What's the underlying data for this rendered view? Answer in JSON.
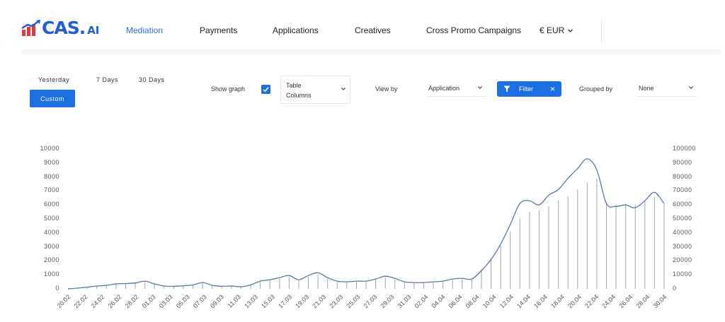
{
  "brand": {
    "name": "CAS.",
    "suffix": "AI",
    "colors": {
      "blue": "#1f5fd0",
      "red": "#e53935"
    }
  },
  "nav": {
    "items": [
      {
        "label": "Mediation",
        "active": true
      },
      {
        "label": "Payments",
        "active": false
      },
      {
        "label": "Applications",
        "active": false
      },
      {
        "label": "Creatives",
        "active": false
      },
      {
        "label": "Cross Promo Campaigns",
        "active": false
      }
    ],
    "currency": "€ EUR"
  },
  "controls": {
    "ranges": [
      "Yesterday",
      "7 Days",
      "30 Days"
    ],
    "custom_label": "Custom",
    "show_graph_label": "Show graph",
    "show_graph_checked": true,
    "metric_select": {
      "line1": "Table",
      "line2": "Columns"
    },
    "view_by_label": "View by",
    "view_by_value": "Application",
    "filter_label": "Filter",
    "grouped_by_label": "Grouped by",
    "grouped_by_value": "None",
    "accent": "#1b6fe0"
  },
  "chart_data": {
    "type": "line",
    "title": "",
    "xlabel": "",
    "ylabel": "",
    "left_axis": {
      "ticks": [
        "0",
        "1000",
        "2000",
        "3000",
        "4000",
        "5000",
        "6000",
        "7000",
        "8000",
        "9000",
        "10000"
      ],
      "ylim": [
        0,
        10000
      ]
    },
    "right_axis": {
      "ticks": [
        "0",
        "10000",
        "20000",
        "30000",
        "40000",
        "50000",
        "60000",
        "70000",
        "80000",
        "90000",
        "100000"
      ],
      "ylim": [
        0,
        100000
      ]
    },
    "x_tick_labels": [
      "20.02",
      "22.02",
      "24.02",
      "26.02",
      "28.02",
      "01.03",
      "03.03",
      "05.03",
      "07.03",
      "09.03",
      "11.03",
      "13.03",
      "15.03",
      "17.03",
      "19.03",
      "21.03",
      "23.03",
      "25.03",
      "27.03",
      "29.03",
      "31.03",
      "02.04",
      "04.04",
      "06.04",
      "08.04",
      "10.04",
      "12.04",
      "14.04",
      "16.04",
      "18.04",
      "20.04",
      "22.04",
      "24.04",
      "26.04",
      "28.04",
      "30.04"
    ],
    "series": [
      {
        "axis": "left",
        "style": "smooth-line",
        "color": "#5b77a8",
        "values": [
          0,
          50,
          120,
          200,
          250,
          350,
          380,
          420,
          550,
          350,
          200,
          180,
          220,
          280,
          450,
          250,
          180,
          200,
          150,
          280,
          550,
          650,
          800,
          950,
          650,
          950,
          1150,
          800,
          550,
          500,
          550,
          550,
          700,
          900,
          750,
          500,
          450,
          450,
          500,
          550,
          700,
          750,
          700,
          1300,
          2100,
          3200,
          4600,
          6100,
          6300,
          6000,
          6700,
          7100,
          7900,
          8600,
          9300,
          8500,
          6100,
          5900,
          6000,
          5800,
          6300,
          6900,
          6100
        ]
      },
      {
        "axis": "right",
        "style": "thin-bars",
        "color": "#9aa3b3",
        "values": [
          0,
          800,
          1500,
          2200,
          2700,
          3400,
          3800,
          4100,
          5000,
          3600,
          2300,
          2000,
          2300,
          2800,
          4200,
          2500,
          1900,
          2000,
          1600,
          2800,
          5100,
          6000,
          7300,
          8500,
          6100,
          8600,
          10000,
          7200,
          5000,
          4700,
          5100,
          5000,
          6300,
          8000,
          6800,
          4700,
          4300,
          4300,
          4700,
          5000,
          6400,
          6900,
          6500,
          14000,
          21000,
          31000,
          41000,
          50000,
          55000,
          56000,
          59000,
          63000,
          66000,
          71000,
          76000,
          79000,
          62000,
          60000,
          61000,
          60000,
          63000,
          66000,
          61000
        ]
      }
    ],
    "grid": false
  }
}
